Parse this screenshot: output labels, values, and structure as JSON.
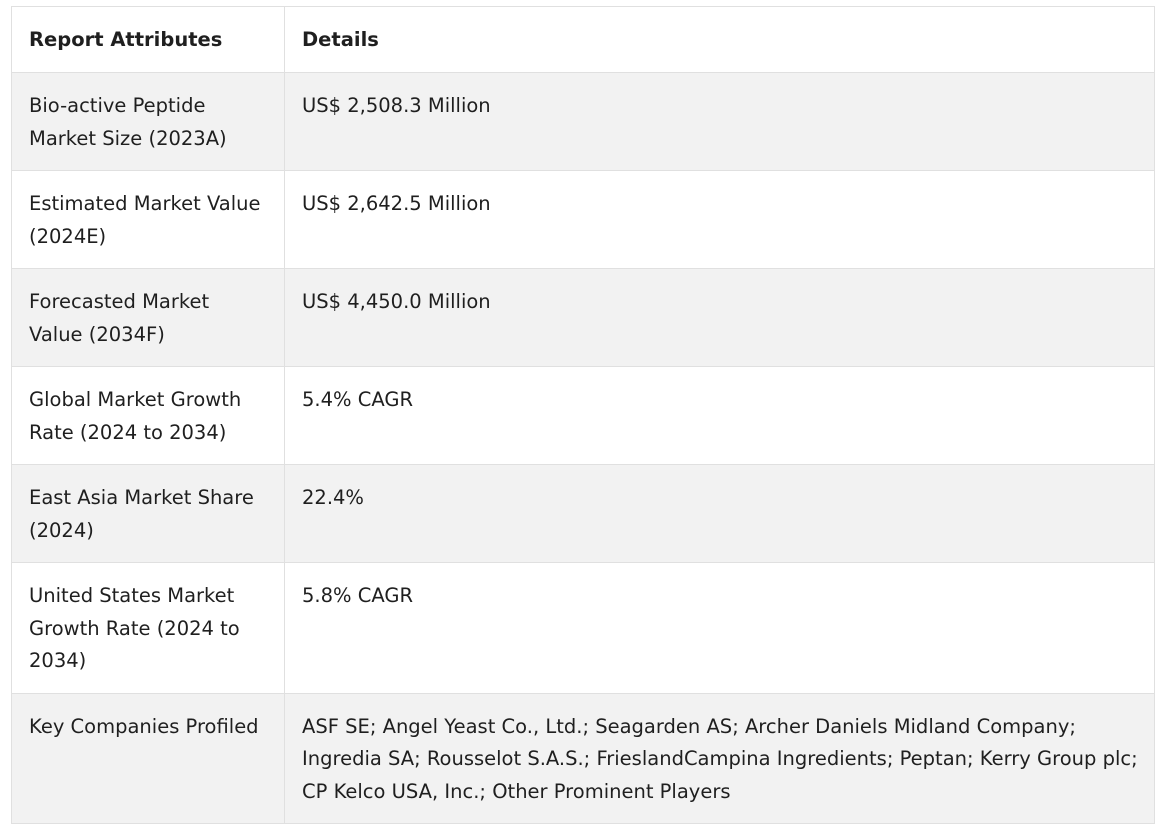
{
  "table": {
    "headers": [
      "Report Attributes",
      "Details"
    ],
    "rows": [
      {
        "attribute": "Bio-active Peptide Market Size (2023A)",
        "details": "US$ 2,508.3 Million"
      },
      {
        "attribute": "Estimated Market Value (2024E)",
        "details": "US$ 2,642.5 Million"
      },
      {
        "attribute": "Forecasted Market Value (2034F)",
        "details": "US$ 4,450.0 Million"
      },
      {
        "attribute": "Global Market Growth Rate (2024 to 2034)",
        "details": "5.4% CAGR"
      },
      {
        "attribute": "East Asia Market Share (2024)",
        "details": "22.4%"
      },
      {
        "attribute": "United States Market Growth Rate (2024 to 2034)",
        "details": "5.8% CAGR"
      },
      {
        "attribute": "Key Companies Profiled",
        "details": "ASF SE; Angel Yeast Co., Ltd.; Seagarden AS; Archer Daniels Midland Company; Ingredia SA; Rousselot S.A.S.; FrieslandCampina Ingredients; Peptan; Kerry Group plc; CP Kelco USA, Inc.; Other Prominent Players"
      }
    ]
  }
}
